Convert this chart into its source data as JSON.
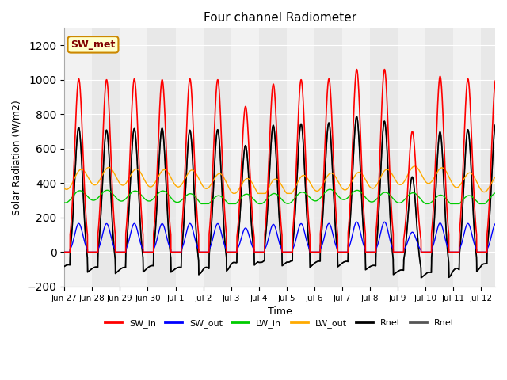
{
  "title": "Four channel Radiometer",
  "xlabel": "Time",
  "ylabel": "Solar Radiation (W/m2)",
  "ylim": [
    -200,
    1300
  ],
  "background_color": "#e8e8e8",
  "annotation_text": "SW_met",
  "annotation_bg": "#ffffcc",
  "annotation_border": "#cc8800",
  "tick_labels": [
    "Jun 27",
    "Jun 28",
    "Jun 29",
    "Jun 30",
    "Jul 1",
    "Jul 2",
    "Jul 3",
    "Jul 4",
    "Jul 5",
    "Jul 6",
    "Jul 7",
    "Jul 8",
    "Jul 9",
    "Jul 10",
    "Jul 11",
    "Jul 12"
  ],
  "legend_entries": [
    {
      "label": "SW_in",
      "color": "#ff0000"
    },
    {
      "label": "SW_out",
      "color": "#0000ff"
    },
    {
      "label": "LW_in",
      "color": "#00cc00"
    },
    {
      "label": "LW_out",
      "color": "#ffaa00"
    },
    {
      "label": "Rnet",
      "color": "#000000"
    },
    {
      "label": "Rnet",
      "color": "#555555"
    }
  ],
  "day_peaks_sw_in": [
    1005,
    1000,
    1005,
    1000,
    1005,
    1000,
    845,
    975,
    1000,
    1005,
    1060,
    1060,
    700,
    1020,
    1005,
    1000
  ],
  "sw_out_ratio": 0.165,
  "lw_in_base": 315,
  "lw_in_amp": 30,
  "lw_out_base": 410,
  "lw_out_amp": 50,
  "rnet_night_base": -105,
  "daylight_halfwidth": 3.5,
  "peak_hour": 12.5,
  "num_days": 16
}
